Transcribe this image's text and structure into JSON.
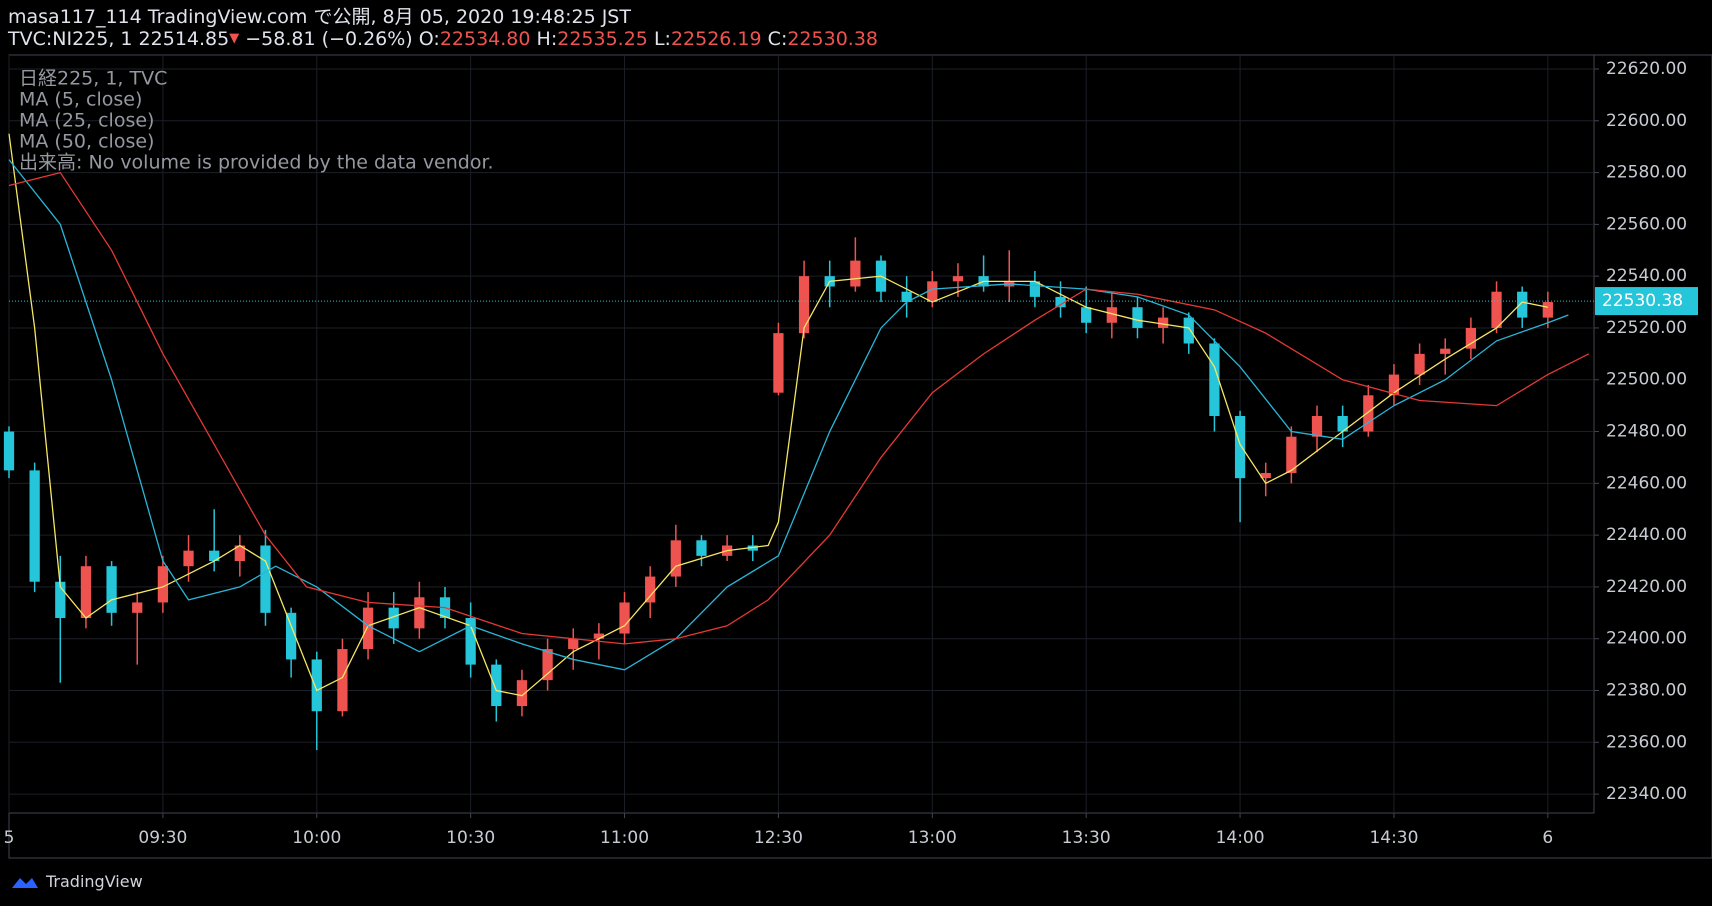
{
  "header": {
    "title": "masa117_114 TradingView.com で公開, 8月 05, 2020 19:48:25 JST",
    "symbol": "TVC:NI225, 1 22514.85",
    "arrow": "▼",
    "change": "−58.81 (−0.26%)",
    "o_label": "O:",
    "o_value": "22534.80",
    "h_label": "H:",
    "h_value": "22535.25",
    "l_label": "L:",
    "l_value": "22526.19",
    "c_label": "C:",
    "c_value": "22530.38"
  },
  "footer": {
    "brand": "TradingView"
  },
  "chart_data": {
    "type": "candlestick",
    "symbol_label": "日経225, 1, TVC",
    "volume_note": "出来高: No volume is provided by the data vendor.",
    "up_color": "#ef5350",
    "down_color": "#26c6da",
    "x": [
      0,
      5,
      10,
      15,
      20,
      25,
      30,
      35,
      40,
      45,
      50,
      55,
      60,
      65,
      70,
      75,
      80,
      85,
      90,
      95,
      100,
      105,
      110,
      115,
      120,
      125,
      130,
      135,
      140,
      145,
      150,
      155,
      160,
      165,
      170,
      175,
      180,
      185,
      190,
      195,
      200,
      205,
      210,
      215,
      220,
      225,
      230,
      235,
      240,
      245,
      250,
      255,
      260,
      265,
      270,
      275,
      280,
      285,
      290,
      295,
      300
    ],
    "open": [
      22480,
      22465,
      22422,
      22408,
      22428,
      22410,
      22414,
      22428,
      22434,
      22430,
      22436,
      22410,
      22392,
      22372,
      22396,
      22412,
      22404,
      22416,
      22408,
      22390,
      22374,
      22384,
      22396,
      22400,
      22402,
      22414,
      22424,
      22438,
      22432,
      22436,
      22495,
      22518,
      22540,
      22536,
      22546,
      22534,
      22530,
      22538,
      22540,
      22536,
      22538,
      22532,
      22528,
      22522,
      22528,
      22520,
      22524,
      22514,
      22486,
      22462,
      22464,
      22478,
      22486,
      22480,
      22494,
      22502,
      22510,
      22512,
      22520,
      22534,
      22524
    ],
    "high": [
      22482,
      22468,
      22432,
      22432,
      22430,
      22418,
      22432,
      22440,
      22450,
      22440,
      22442,
      22412,
      22395,
      22400,
      22418,
      22418,
      22422,
      22420,
      22414,
      22392,
      22388,
      22400,
      22404,
      22406,
      22418,
      22428,
      22444,
      22440,
      22440,
      22440,
      22522,
      22546,
      22546,
      22555,
      22548,
      22540,
      22542,
      22545,
      22548,
      22550,
      22542,
      22538,
      22536,
      22534,
      22532,
      22528,
      22526,
      22516,
      22488,
      22468,
      22482,
      22490,
      22490,
      22498,
      22506,
      22514,
      22516,
      22524,
      22538,
      22536,
      22534
    ],
    "low": [
      22462,
      22418,
      22383,
      22404,
      22405,
      22390,
      22410,
      22422,
      22426,
      22424,
      22405,
      22385,
      22357,
      22370,
      22392,
      22398,
      22400,
      22404,
      22385,
      22368,
      22370,
      22380,
      22388,
      22392,
      22398,
      22408,
      22420,
      22428,
      22430,
      22430,
      22494,
      22516,
      22528,
      22534,
      22530,
      22524,
      22528,
      22532,
      22534,
      22530,
      22528,
      22524,
      22518,
      22516,
      22516,
      22514,
      22510,
      22480,
      22445,
      22455,
      22460,
      22472,
      22474,
      22478,
      22490,
      22498,
      22502,
      22508,
      22518,
      22520,
      22520
    ],
    "close": [
      22465,
      22422,
      22408,
      22428,
      22410,
      22414,
      22428,
      22434,
      22430,
      22436,
      22410,
      22392,
      22372,
      22396,
      22412,
      22404,
      22416,
      22408,
      22390,
      22374,
      22384,
      22396,
      22400,
      22402,
      22414,
      22424,
      22438,
      22432,
      22436,
      22434,
      22518,
      22540,
      22536,
      22546,
      22534,
      22530,
      22538,
      22540,
      22536,
      22538,
      22532,
      22528,
      22522,
      22528,
      22520,
      22524,
      22514,
      22486,
      22462,
      22464,
      22478,
      22486,
      22480,
      22494,
      22502,
      22510,
      22512,
      22520,
      22534,
      22524,
      22530
    ],
    "series": [
      {
        "name": "MA (5, close)",
        "color": "#f5e663",
        "x": [
          0,
          5,
          10,
          15,
          20,
          30,
          40,
          45,
          50,
          55,
          60,
          65,
          70,
          80,
          90,
          95,
          100,
          110,
          120,
          130,
          140,
          148,
          150,
          155,
          160,
          170,
          180,
          190,
          200,
          210,
          220,
          230,
          235,
          240,
          245,
          250,
          260,
          270,
          280,
          290,
          295,
          300
        ],
        "values": [
          22595,
          22520,
          22420,
          22408,
          22415,
          22420,
          22430,
          22436,
          22430,
          22405,
          22380,
          22385,
          22405,
          22412,
          22405,
          22380,
          22378,
          22395,
          22405,
          22428,
          22434,
          22436,
          22445,
          22520,
          22538,
          22540,
          22530,
          22538,
          22538,
          22528,
          22523,
          22520,
          22505,
          22475,
          22460,
          22465,
          22480,
          22495,
          22508,
          22520,
          22530,
          22528
        ]
      },
      {
        "name": "MA (25, close)",
        "color": "#29b6d8",
        "x": [
          0,
          10,
          20,
          30,
          35,
          45,
          52,
          60,
          70,
          80,
          90,
          100,
          110,
          120,
          130,
          140,
          150,
          160,
          170,
          175,
          180,
          195,
          210,
          220,
          230,
          240,
          250,
          260,
          270,
          280,
          290,
          300,
          304
        ],
        "values": [
          22585,
          22560,
          22500,
          22430,
          22415,
          22420,
          22428,
          22420,
          22405,
          22395,
          22405,
          22398,
          22392,
          22388,
          22400,
          22420,
          22432,
          22480,
          22520,
          22530,
          22535,
          22537,
          22535,
          22532,
          22525,
          22505,
          22480,
          22477,
          22490,
          22500,
          22515,
          22522,
          22525
        ]
      },
      {
        "name": "MA (50, close)",
        "color": "#e53935",
        "x": [
          0,
          10,
          20,
          30,
          40,
          50,
          58,
          70,
          85,
          100,
          120,
          130,
          140,
          148,
          160,
          170,
          180,
          190,
          200,
          210,
          220,
          235,
          245,
          260,
          275,
          290,
          300,
          308
        ],
        "values": [
          22575,
          22580,
          22550,
          22510,
          22475,
          22440,
          22420,
          22414,
          22412,
          22402,
          22398,
          22400,
          22405,
          22415,
          22440,
          22470,
          22495,
          22510,
          22523,
          22535,
          22533,
          22527,
          22518,
          22500,
          22492,
          22490,
          22502,
          22510
        ]
      }
    ],
    "last_price": 22530.38,
    "last_price_color": "#26c6da",
    "xlim": [
      0,
      309
    ],
    "ylim": [
      22332.7,
      22625.4
    ],
    "xticks": [
      {
        "value": 0,
        "label": "5"
      },
      {
        "value": 30,
        "label": "09:30"
      },
      {
        "value": 60,
        "label": "10:00"
      },
      {
        "value": 90,
        "label": "10:30"
      },
      {
        "value": 120,
        "label": "11:00"
      },
      {
        "value": 150,
        "label": "12:30"
      },
      {
        "value": 180,
        "label": "13:00"
      },
      {
        "value": 210,
        "label": "13:30"
      },
      {
        "value": 240,
        "label": "14:00"
      },
      {
        "value": 270,
        "label": "14:30"
      },
      {
        "value": 300,
        "label": "6"
      }
    ],
    "yticks": [
      {
        "value": 22340,
        "label": "22340.00"
      },
      {
        "value": 22360,
        "label": "22360.00"
      },
      {
        "value": 22380,
        "label": "22380.00"
      },
      {
        "value": 22400,
        "label": "22400.00"
      },
      {
        "value": 22420,
        "label": "22420.00"
      },
      {
        "value": 22440,
        "label": "22440.00"
      },
      {
        "value": 22460,
        "label": "22460.00"
      },
      {
        "value": 22480,
        "label": "22480.00"
      },
      {
        "value": 22500,
        "label": "22500.00"
      },
      {
        "value": 22520,
        "label": "22520.00"
      },
      {
        "value": 22540,
        "label": "22540.00"
      },
      {
        "value": 22560,
        "label": "22560.00"
      },
      {
        "value": 22580,
        "label": "22580.00"
      },
      {
        "value": 22600,
        "label": "22600.00"
      },
      {
        "value": 22620,
        "label": "22620.00"
      }
    ],
    "grid": true
  }
}
